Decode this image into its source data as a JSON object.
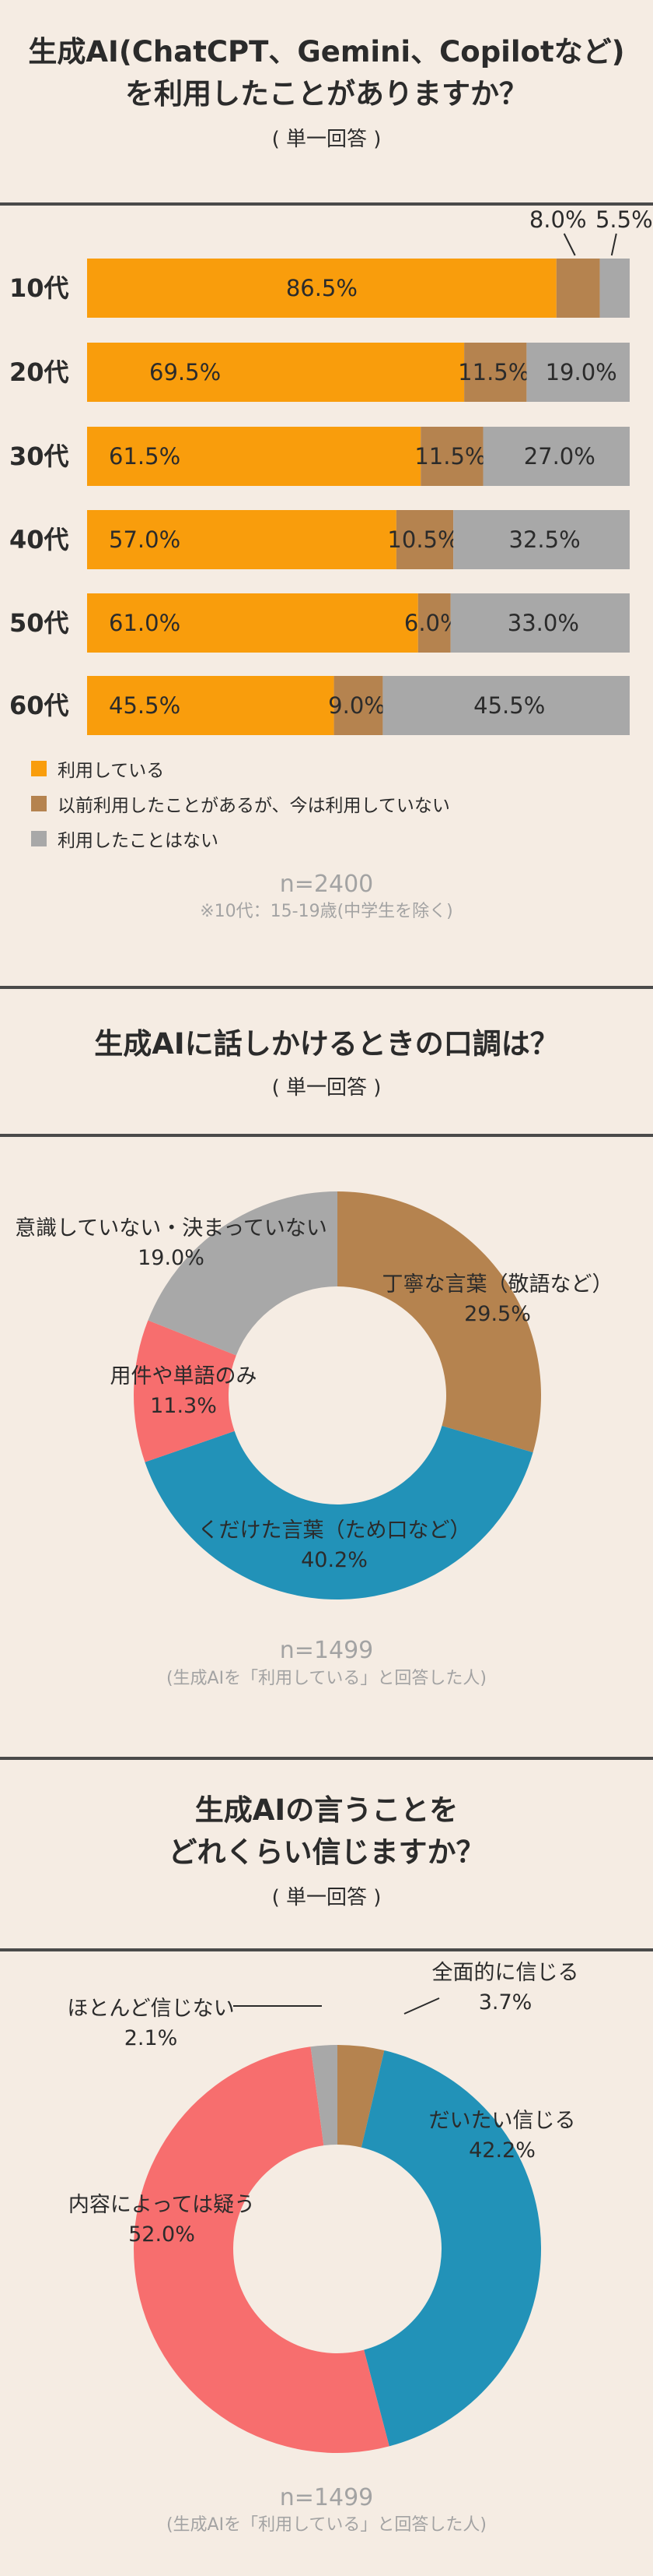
{
  "sections": [
    {
      "title_line1": "生成AI(ChatCPT、Gemini、Copilotなど)",
      "title_line2": "を利用したことがありますか？",
      "subtitle": "( 単一回答 )",
      "note_n": "n=2400",
      "note_small": "※10代：15-19歳(中学生を除く)"
    },
    {
      "title_line1": "生成AIに話しかけるときの口調は？",
      "subtitle": "( 単一回答 )",
      "note_n": "n=1499",
      "note_small": "(生成AIを「利用している」と回答した人)"
    },
    {
      "title_line1": "生成AIの言うことを",
      "title_line2": "どれくらい信じますか？",
      "subtitle": "( 単一回答 )",
      "note_n": "n=1499",
      "note_small": "(生成AIを「利用している」と回答した人)"
    }
  ],
  "chart_data": [
    {
      "type": "bar",
      "orientation": "horizontal",
      "stacked": true,
      "categories": [
        "10代",
        "20代",
        "30代",
        "40代",
        "50代",
        "60代"
      ],
      "series": [
        {
          "name": "利用している",
          "color": "#f99d0c",
          "values": [
            86.5,
            69.5,
            61.5,
            57.0,
            61.0,
            45.5
          ]
        },
        {
          "name": "以前利用したことがあるが、今は利用していない",
          "color": "#b5834f",
          "values": [
            8.0,
            11.5,
            11.5,
            10.5,
            6.0,
            9.0
          ]
        },
        {
          "name": "利用したことはない",
          "color": "#a8a8a8",
          "values": [
            5.5,
            19.0,
            27.0,
            32.5,
            33.0,
            45.5
          ]
        }
      ],
      "labels": [
        [
          "86.5%",
          "8.0%",
          "5.5%"
        ],
        [
          "69.5%",
          "11.5%",
          "19.0%"
        ],
        [
          "61.5%",
          "11.5%",
          "27.0%"
        ],
        [
          "57.0%",
          "10.5%",
          "32.5%"
        ],
        [
          "61.0%",
          "6.0%",
          "33.0%"
        ],
        [
          "45.5%",
          "9.0%",
          "45.5%"
        ]
      ],
      "xlim": [
        0,
        100
      ],
      "legend_position": "bottom-left"
    },
    {
      "type": "pie",
      "donut": true,
      "slices": [
        {
          "label": "丁寧な言葉（敬語など）",
          "value": 29.5,
          "value_text": "29.5%",
          "color": "#b5834f"
        },
        {
          "label": "くだけた言葉（ため口など）",
          "value": 40.2,
          "value_text": "40.2%",
          "color": "#2292b8"
        },
        {
          "label": "用件や単語のみ",
          "value": 11.3,
          "value_text": "11.3%",
          "color": "#f76e6e"
        },
        {
          "label": "意識していない・決まっていない",
          "value": 19.0,
          "value_text": "19.0%",
          "color": "#a8a8a8"
        }
      ]
    },
    {
      "type": "pie",
      "donut": true,
      "slices": [
        {
          "label": "全面的に信じる",
          "value": 3.7,
          "value_text": "3.7%",
          "color": "#b5834f"
        },
        {
          "label": "だいたい信じる",
          "value": 42.2,
          "value_text": "42.2%",
          "color": "#2292b8"
        },
        {
          "label": "内容によっては疑う",
          "value": 52.0,
          "value_text": "52.0%",
          "color": "#f76e6e"
        },
        {
          "label": "ほとんど信じない",
          "value": 2.1,
          "value_text": "2.1%",
          "color": "#a8a8a8"
        }
      ]
    }
  ]
}
